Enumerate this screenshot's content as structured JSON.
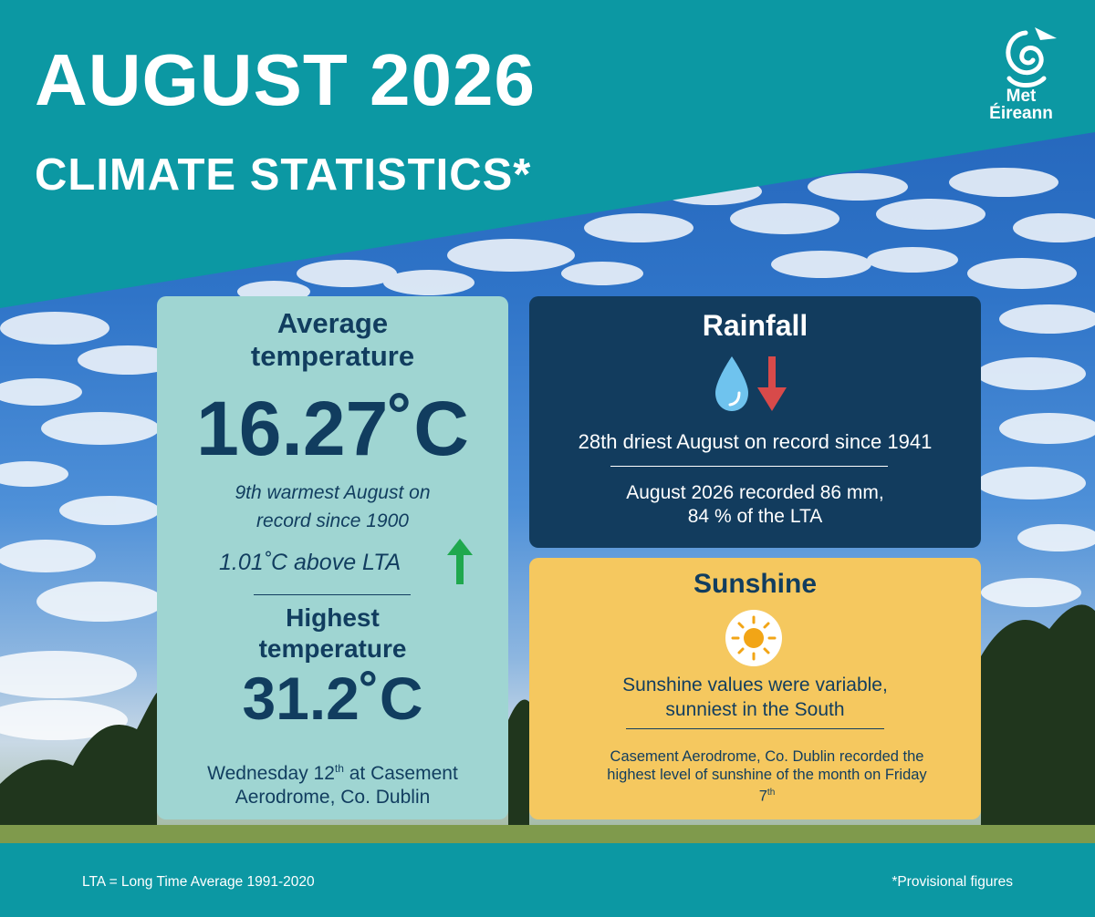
{
  "header": {
    "title": "AUGUST 2026",
    "subtitle": "CLIMATE STATISTICS*",
    "logo_text_line1": "Met",
    "logo_text_line2": "Éireann"
  },
  "temperature": {
    "title_line1": "Average",
    "title_line2": "temperature",
    "value": "16.27˚C",
    "rank_line1": "9th warmest August on",
    "rank_line2": "record since 1900",
    "anomaly": "1.01˚C above LTA",
    "highest_title_line1": "Highest",
    "highest_title_line2": "temperature",
    "highest_value": "31.2˚C",
    "highest_day": "Wednesday 12",
    "highest_day_suffix": "th",
    "highest_where_part1": " at Casement",
    "highest_where_line2": "Aerodrome, Co. Dublin"
  },
  "rainfall": {
    "title": "Rainfall",
    "rank": "28th driest August on record since 1941",
    "amount_line1": "August 2026 recorded 86 mm,",
    "amount_line2": "84 % of the LTA",
    "icon": "water-drop-icon"
  },
  "sunshine": {
    "title": "Sunshine",
    "desc_line1": "Sunshine values were variable,",
    "desc_line2": "sunniest in the South",
    "record_line1": "Casement Aerodrome, Co. Dublin recorded the",
    "record_line2": "highest level of sunshine of the month on Friday",
    "record_line3": "7",
    "record_line3_suffix": "th",
    "icon": "sun-icon"
  },
  "footer": {
    "lta_note": "LTA = Long Time Average 1991-2020",
    "provisional_note": "*Provisional figures"
  },
  "colors": {
    "teal": "#0c98a3",
    "temp_card": "#9fd5d2",
    "rain_card": "#123c5e",
    "sun_card": "#f5c85f",
    "text_navy": "#113d5f",
    "up_arrow": "#1fa84e",
    "down_arrow": "#d84a4a"
  }
}
